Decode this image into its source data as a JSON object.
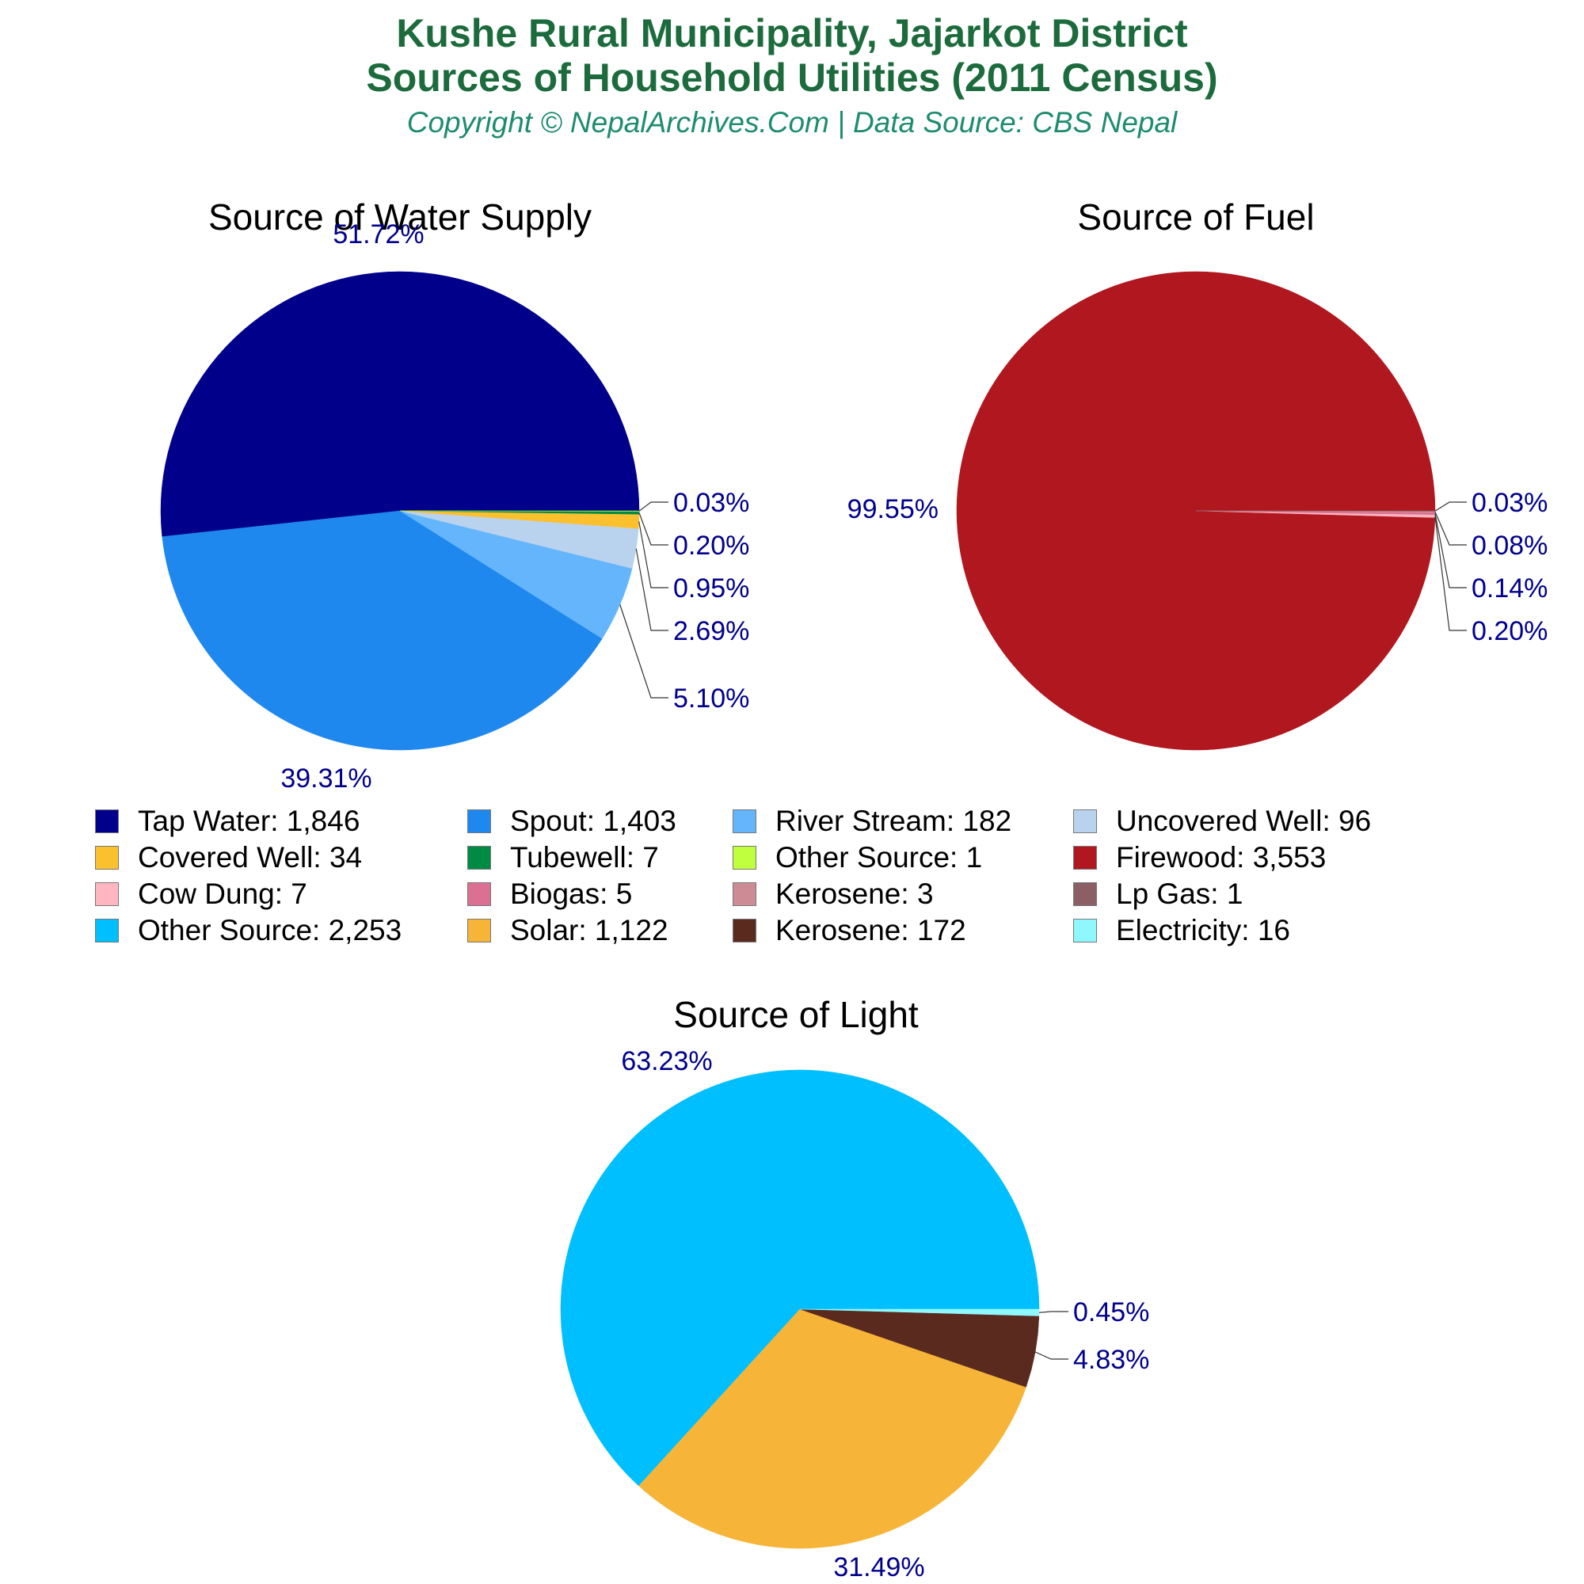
{
  "header": {
    "title_line1": "Kushe Rural Municipality, Jajarkot District",
    "title_line2": "Sources of Household Utilities (2011 Census)",
    "subtitle": "Copyright © NepalArchives.Com | Data Source: CBS Nepal"
  },
  "chart_data": [
    {
      "type": "pie",
      "title": "Source of Water Supply",
      "slices": [
        {
          "label": "Tap Water",
          "value": 1846,
          "percent": "51.72%",
          "color": "#00008b"
        },
        {
          "label": "Spout",
          "value": 1403,
          "percent": "39.31%",
          "color": "#1e88ee"
        },
        {
          "label": "River Stream",
          "value": 182,
          "percent": "5.10%",
          "color": "#64b5fb"
        },
        {
          "label": "Uncovered Well",
          "value": 96,
          "percent": "2.69%",
          "color": "#b9d3ee"
        },
        {
          "label": "Covered Well",
          "value": 34,
          "percent": "0.95%",
          "color": "#fbc02d"
        },
        {
          "label": "Tubewell",
          "value": 7,
          "percent": "0.20%",
          "color": "#008b45"
        },
        {
          "label": "Other Source",
          "value": 1,
          "percent": "0.03%",
          "color": "#c0ff3e"
        }
      ]
    },
    {
      "type": "pie",
      "title": "Source of Fuel",
      "slices": [
        {
          "label": "Firewood",
          "value": 3553,
          "percent": "99.55%",
          "color": "#b0171f"
        },
        {
          "label": "Cow Dung",
          "value": 7,
          "percent": "0.20%",
          "color": "#ffb6c1"
        },
        {
          "label": "Biogas",
          "value": 5,
          "percent": "0.14%",
          "color": "#db7093"
        },
        {
          "label": "Kerosene",
          "value": 3,
          "percent": "0.08%",
          "color": "#cd8c95"
        },
        {
          "label": "Lp Gas",
          "value": 1,
          "percent": "0.03%",
          "color": "#8b5f65"
        }
      ]
    },
    {
      "type": "pie",
      "title": "Source of Light",
      "slices": [
        {
          "label": "Other Source",
          "value": 2253,
          "percent": "63.23%",
          "color": "#00bfff"
        },
        {
          "label": "Solar",
          "value": 1122,
          "percent": "31.49%",
          "color": "#f6b538"
        },
        {
          "label": "Kerosene",
          "value": 172,
          "percent": "4.83%",
          "color": "#5b2a1f"
        },
        {
          "label": "Electricity",
          "value": 16,
          "percent": "0.45%",
          "color": "#8ff8ff"
        }
      ]
    }
  ],
  "legend": [
    {
      "label": "Tap Water: 1,846",
      "color": "#00008b"
    },
    {
      "label": "Spout: 1,403",
      "color": "#1e88ee"
    },
    {
      "label": "River Stream: 182",
      "color": "#64b5fb"
    },
    {
      "label": "Uncovered Well: 96",
      "color": "#b9d3ee"
    },
    {
      "label": "Covered Well: 34",
      "color": "#fbc02d"
    },
    {
      "label": "Tubewell: 7",
      "color": "#008b45"
    },
    {
      "label": "Other Source: 1",
      "color": "#c0ff3e"
    },
    {
      "label": "Firewood: 3,553",
      "color": "#b0171f"
    },
    {
      "label": "Cow Dung: 7",
      "color": "#ffb6c1"
    },
    {
      "label": "Biogas: 5",
      "color": "#db7093"
    },
    {
      "label": "Kerosene: 3",
      "color": "#cd8c95"
    },
    {
      "label": "Lp Gas: 1",
      "color": "#8b5f65"
    },
    {
      "label": "Other Source: 2,253",
      "color": "#00bfff"
    },
    {
      "label": "Solar: 1,122",
      "color": "#f6b538"
    },
    {
      "label": "Kerosene: 172",
      "color": "#5b2a1f"
    },
    {
      "label": "Electricity: 16",
      "color": "#8ff8ff"
    }
  ]
}
